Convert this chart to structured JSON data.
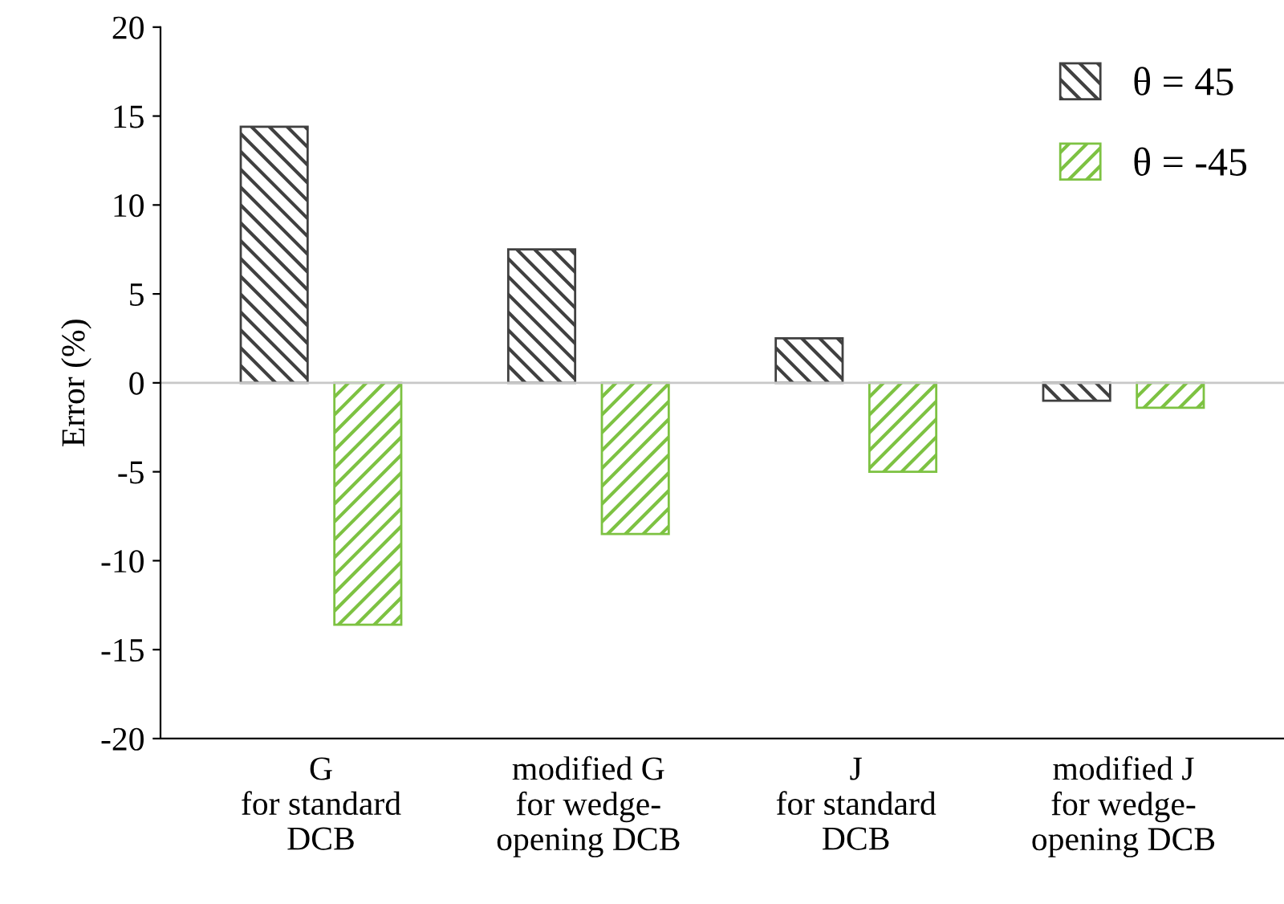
{
  "chart_data": {
    "type": "bar",
    "ylabel": "Error (%)",
    "categories": [
      "G\nfor standard\nDCB",
      "modified G\nfor wedge-\nopening DCB",
      "J\nfor standard\nDCB",
      "modified J\nfor wedge-\nopening DCB"
    ],
    "series": [
      {
        "name": "θ = 45",
        "color": "#404040",
        "values": [
          14.4,
          7.5,
          2.5,
          -1.0
        ]
      },
      {
        "name": "θ = -45",
        "color": "#7dc242",
        "values": [
          -13.6,
          -8.5,
          -5.0,
          -1.4
        ]
      }
    ],
    "ylim": [
      -20,
      20
    ],
    "yticks": [
      {
        "value": -20,
        "label": "-20"
      },
      {
        "value": -15,
        "label": "-15"
      },
      {
        "value": -10,
        "label": "-10"
      },
      {
        "value": -5,
        "label": "-5"
      },
      0,
      5,
      10,
      15,
      20
    ],
    "legend": "top right"
  }
}
